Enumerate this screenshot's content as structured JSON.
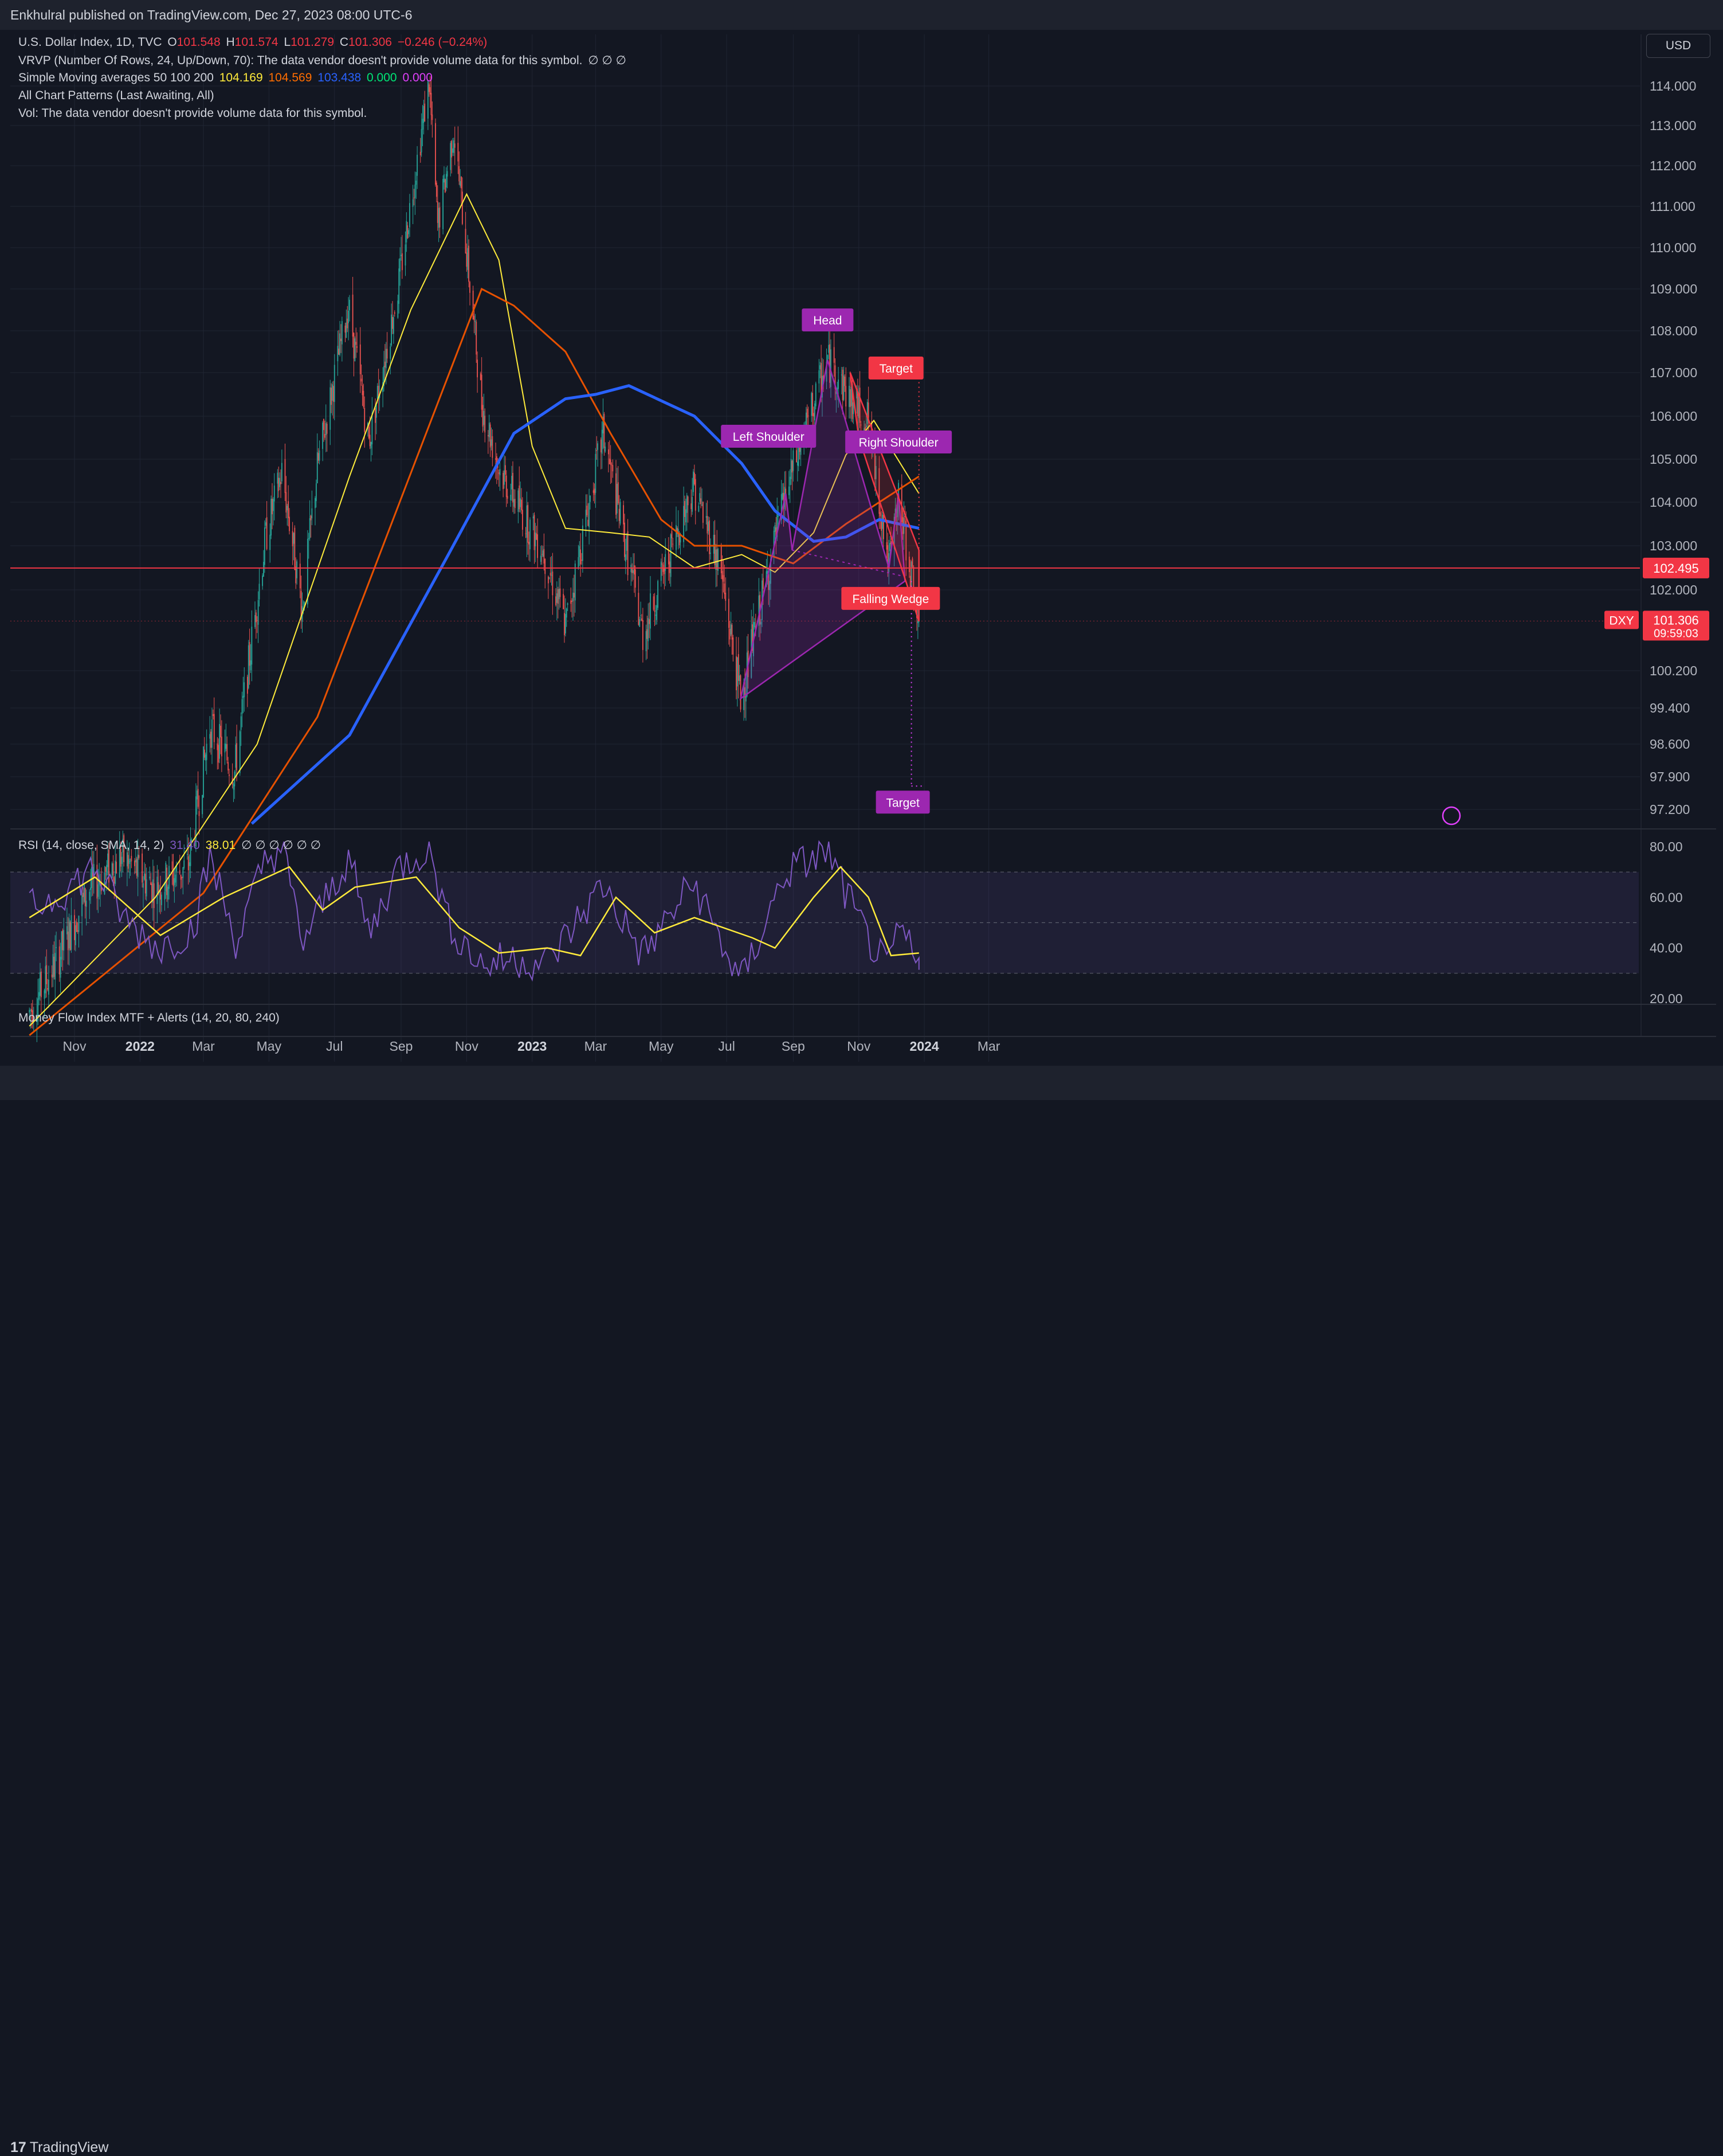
{
  "publisher": "Enkhulral published on TradingView.com, Dec 27, 2023 08:00 UTC-6",
  "footer": {
    "logo_text": "TradingView"
  },
  "currency_button": "USD",
  "legend": {
    "symbol": "U.S. Dollar Index, 1D, TVC",
    "o_label": "O",
    "o_value": "101.548",
    "h_label": "H",
    "h_value": "101.574",
    "l_label": "L",
    "l_value": "101.279",
    "c_label": "C",
    "c_value": "101.306",
    "change": "−0.246 (−0.24%)",
    "vrvp": "VRVP (Number Of Rows, 24, Up/Down, 70): The data vendor doesn't provide volume data for this symbol.",
    "vrvp_icons": "∅  ∅  ∅",
    "sma_label": "Simple Moving averages 50 100 200",
    "sma_values": [
      "104.169",
      "104.569",
      "103.438",
      "0.000",
      "0.000"
    ],
    "sma_colors": [
      "#ffeb3b",
      "#e65100",
      "#2962ff",
      "#00e676",
      "#e040fb"
    ],
    "patterns": "All Chart Patterns (Last Awaiting, All)",
    "vol": "Vol: The data vendor doesn't provide volume data for this symbol.",
    "rsi_label": "RSI (14, close, SMA, 14, 2)",
    "rsi_value": "31.40",
    "rsi_sma_value": "38.01",
    "rsi_icons": "∅  ∅  ∅  ∅  ∅  ∅",
    "mfi_label": "Money Flow Index MTF + Alerts (14, 20, 80, 240)"
  },
  "chart_data": {
    "type": "line",
    "title": "U.S. Dollar Index, 1D, TVC",
    "y_ticks": [
      "114.000",
      "113.000",
      "112.000",
      "111.000",
      "110.000",
      "109.000",
      "108.000",
      "107.000",
      "106.000",
      "105.000",
      "104.000",
      "103.000",
      "102.000",
      "100.200",
      "99.400",
      "98.600",
      "97.900",
      "97.200"
    ],
    "rsi_ticks": [
      "80.00",
      "60.00",
      "40.00",
      "20.00"
    ],
    "x_ticks": [
      "Nov",
      "2022",
      "Mar",
      "May",
      "Jul",
      "Sep",
      "Nov",
      "2023",
      "Mar",
      "May",
      "Jul",
      "Sep",
      "Nov",
      "2024",
      "Mar"
    ],
    "bold_x_ticks": [
      "2022",
      "2023",
      "2024"
    ],
    "price_series": [
      {
        "d": "2021-09-20",
        "v": 92.8
      },
      {
        "d": "2021-10-15",
        "v": 93.9
      },
      {
        "d": "2021-11-15",
        "v": 95.5
      },
      {
        "d": "2021-12-15",
        "v": 96.2
      },
      {
        "d": "2022-01-15",
        "v": 95.5
      },
      {
        "d": "2022-02-15",
        "v": 96.0
      },
      {
        "d": "2022-03-07",
        "v": 99.0
      },
      {
        "d": "2022-03-30",
        "v": 98.0
      },
      {
        "d": "2022-04-28",
        "v": 103.2
      },
      {
        "d": "2022-05-13",
        "v": 104.7
      },
      {
        "d": "2022-06-01",
        "v": 101.6
      },
      {
        "d": "2022-06-15",
        "v": 104.8
      },
      {
        "d": "2022-07-14",
        "v": 108.6
      },
      {
        "d": "2022-08-02",
        "v": 105.4
      },
      {
        "d": "2022-08-29",
        "v": 109.0
      },
      {
        "d": "2022-09-27",
        "v": 114.1
      },
      {
        "d": "2022-10-05",
        "v": 110.5
      },
      {
        "d": "2022-10-20",
        "v": 112.9
      },
      {
        "d": "2022-11-15",
        "v": 106.3
      },
      {
        "d": "2022-12-01",
        "v": 104.8
      },
      {
        "d": "2022-12-30",
        "v": 103.4
      },
      {
        "d": "2023-01-10",
        "v": 103.0
      },
      {
        "d": "2023-02-01",
        "v": 101.2
      },
      {
        "d": "2023-03-08",
        "v": 105.6
      },
      {
        "d": "2023-04-14",
        "v": 101.0
      },
      {
        "d": "2023-05-31",
        "v": 104.4
      },
      {
        "d": "2023-06-25",
        "v": 102.5
      },
      {
        "d": "2023-07-14",
        "v": 99.6
      },
      {
        "d": "2023-08-25",
        "v": 104.2
      },
      {
        "d": "2023-10-03",
        "v": 107.3
      },
      {
        "d": "2023-10-24",
        "v": 106.4
      },
      {
        "d": "2023-11-10",
        "v": 105.9
      },
      {
        "d": "2023-11-29",
        "v": 102.5
      },
      {
        "d": "2023-12-08",
        "v": 104.1
      },
      {
        "d": "2023-12-27",
        "v": 101.3
      }
    ],
    "sma50": [
      {
        "d": "2021-09-20",
        "v": 92.5
      },
      {
        "d": "2022-01-15",
        "v": 95.3
      },
      {
        "d": "2022-04-20",
        "v": 98.6
      },
      {
        "d": "2022-07-15",
        "v": 104.6
      },
      {
        "d": "2022-09-10",
        "v": 108.5
      },
      {
        "d": "2022-11-01",
        "v": 111.3
      },
      {
        "d": "2022-12-01",
        "v": 109.7
      },
      {
        "d": "2023-01-01",
        "v": 105.3
      },
      {
        "d": "2023-02-01",
        "v": 103.4
      },
      {
        "d": "2023-03-15",
        "v": 103.3
      },
      {
        "d": "2023-04-20",
        "v": 103.2
      },
      {
        "d": "2023-06-01",
        "v": 102.5
      },
      {
        "d": "2023-07-15",
        "v": 102.8
      },
      {
        "d": "2023-08-15",
        "v": 102.4
      },
      {
        "d": "2023-09-20",
        "v": 103.3
      },
      {
        "d": "2023-10-20",
        "v": 105.1
      },
      {
        "d": "2023-11-15",
        "v": 105.9
      },
      {
        "d": "2023-12-27",
        "v": 104.2
      }
    ],
    "sma100": [
      {
        "d": "2021-09-20",
        "v": 92.3
      },
      {
        "d": "2022-03-01",
        "v": 95.4
      },
      {
        "d": "2022-06-15",
        "v": 99.2
      },
      {
        "d": "2022-09-15",
        "v": 105.0
      },
      {
        "d": "2022-11-15",
        "v": 109.0
      },
      {
        "d": "2022-12-15",
        "v": 108.6
      },
      {
        "d": "2023-02-01",
        "v": 107.5
      },
      {
        "d": "2023-03-15",
        "v": 105.6
      },
      {
        "d": "2023-05-01",
        "v": 103.6
      },
      {
        "d": "2023-06-01",
        "v": 103.0
      },
      {
        "d": "2023-07-15",
        "v": 103.0
      },
      {
        "d": "2023-09-01",
        "v": 102.6
      },
      {
        "d": "2023-10-20",
        "v": 103.5
      },
      {
        "d": "2023-12-27",
        "v": 104.6
      }
    ],
    "sma200": [
      {
        "d": "2022-04-15",
        "v": 96.9
      },
      {
        "d": "2022-07-15",
        "v": 98.8
      },
      {
        "d": "2022-10-15",
        "v": 102.8
      },
      {
        "d": "2022-12-15",
        "v": 105.6
      },
      {
        "d": "2023-02-01",
        "v": 106.4
      },
      {
        "d": "2023-03-01",
        "v": 106.5
      },
      {
        "d": "2023-04-01",
        "v": 106.7
      },
      {
        "d": "2023-06-01",
        "v": 106.0
      },
      {
        "d": "2023-07-15",
        "v": 104.9
      },
      {
        "d": "2023-08-15",
        "v": 103.8
      },
      {
        "d": "2023-09-20",
        "v": 103.1
      },
      {
        "d": "2023-10-20",
        "v": 103.2
      },
      {
        "d": "2023-11-20",
        "v": 103.6
      },
      {
        "d": "2023-12-27",
        "v": 103.4
      }
    ],
    "rsi": [
      {
        "d": "2021-09-20",
        "v": 55
      },
      {
        "d": "2021-10-20",
        "v": 62
      },
      {
        "d": "2021-11-20",
        "v": 72
      },
      {
        "d": "2021-12-20",
        "v": 50
      },
      {
        "d": "2022-01-20",
        "v": 40
      },
      {
        "d": "2022-02-20",
        "v": 48
      },
      {
        "d": "2022-03-07",
        "v": 76
      },
      {
        "d": "2022-04-01",
        "v": 42
      },
      {
        "d": "2022-04-28",
        "v": 75
      },
      {
        "d": "2022-05-13",
        "v": 80
      },
      {
        "d": "2022-06-01",
        "v": 42
      },
      {
        "d": "2022-07-14",
        "v": 76
      },
      {
        "d": "2022-08-02",
        "v": 45
      },
      {
        "d": "2022-08-29",
        "v": 72
      },
      {
        "d": "2022-09-27",
        "v": 80
      },
      {
        "d": "2022-10-15",
        "v": 50
      },
      {
        "d": "2022-11-15",
        "v": 33
      },
      {
        "d": "2022-12-15",
        "v": 36
      },
      {
        "d": "2023-01-15",
        "v": 34
      },
      {
        "d": "2023-03-08",
        "v": 65
      },
      {
        "d": "2023-04-14",
        "v": 37
      },
      {
        "d": "2023-05-31",
        "v": 66
      },
      {
        "d": "2023-07-14",
        "v": 26
      },
      {
        "d": "2023-08-25",
        "v": 70
      },
      {
        "d": "2023-10-03",
        "v": 78
      },
      {
        "d": "2023-11-01",
        "v": 50
      },
      {
        "d": "2023-11-29",
        "v": 30
      },
      {
        "d": "2023-12-08",
        "v": 49
      },
      {
        "d": "2023-12-27",
        "v": 31.4
      }
    ],
    "rsi_sma": [
      {
        "d": "2021-09-20",
        "v": 52
      },
      {
        "d": "2021-11-20",
        "v": 68
      },
      {
        "d": "2022-01-20",
        "v": 45
      },
      {
        "d": "2022-03-20",
        "v": 60
      },
      {
        "d": "2022-05-20",
        "v": 72
      },
      {
        "d": "2022-06-20",
        "v": 55
      },
      {
        "d": "2022-07-20",
        "v": 64
      },
      {
        "d": "2022-09-15",
        "v": 68
      },
      {
        "d": "2022-10-25",
        "v": 48
      },
      {
        "d": "2022-12-01",
        "v": 38
      },
      {
        "d": "2023-01-15",
        "v": 40
      },
      {
        "d": "2023-02-15",
        "v": 37
      },
      {
        "d": "2023-03-20",
        "v": 60
      },
      {
        "d": "2023-04-25",
        "v": 46
      },
      {
        "d": "2023-06-01",
        "v": 52
      },
      {
        "d": "2023-07-25",
        "v": 44
      },
      {
        "d": "2023-08-15",
        "v": 40
      },
      {
        "d": "2023-09-20",
        "v": 60
      },
      {
        "d": "2023-10-15",
        "v": 72
      },
      {
        "d": "2023-11-10",
        "v": 60
      },
      {
        "d": "2023-12-01",
        "v": 37
      },
      {
        "d": "2023-12-27",
        "v": 38.01
      }
    ],
    "rsi_band": {
      "upper": 70,
      "middle": 50,
      "lower": 30
    },
    "horizontal_line": {
      "value": 102.495,
      "label": "102.495",
      "color": "#f23645"
    },
    "last_price": {
      "symbol": "DXY",
      "value": "101.306",
      "countdown": "09:59:03",
      "color": "#f23645"
    },
    "annotations": [
      {
        "text": "Head",
        "color": "#9c27b0"
      },
      {
        "text": "Left Shoulder",
        "color": "#9c27b0"
      },
      {
        "text": "Right Shoulder",
        "color": "#9c27b0"
      },
      {
        "text": "Target",
        "color": "#f23645"
      },
      {
        "text": "Falling Wedge",
        "color": "#f23645"
      },
      {
        "text": "Target",
        "color": "#9c27b0"
      }
    ],
    "head_and_shoulders": {
      "points": [
        {
          "d": "2023-07-14",
          "v": 99.6
        },
        {
          "d": "2023-08-25",
          "v": 104.2
        },
        {
          "d": "2023-08-31",
          "v": 102.9
        },
        {
          "d": "2023-10-03",
          "v": 107.3
        },
        {
          "d": "2023-11-29",
          "v": 102.5
        },
        {
          "d": "2023-12-08",
          "v": 104.2
        },
        {
          "d": "2023-12-14",
          "v": 102.2
        }
      ],
      "target": 97.7
    },
    "falling_wedge": {
      "upper": [
        {
          "d": "2023-10-24",
          "v": 107.0
        },
        {
          "d": "2023-12-27",
          "v": 102.9
        }
      ],
      "lower": [
        {
          "d": "2023-11-01",
          "v": 105.5
        },
        {
          "d": "2023-12-27",
          "v": 101.3
        }
      ],
      "target": 107.0
    },
    "colors": {
      "up": "#26a69a",
      "down": "#ef5350",
      "sma50": "#ffeb3b",
      "sma100": "#e65100",
      "sma200": "#2962ff",
      "rsi": "#7e57c2",
      "rsi_sma": "#ffeb3b",
      "pattern_purple": "#9c27b0",
      "wedge_red": "#f23645"
    },
    "grid": true
  }
}
